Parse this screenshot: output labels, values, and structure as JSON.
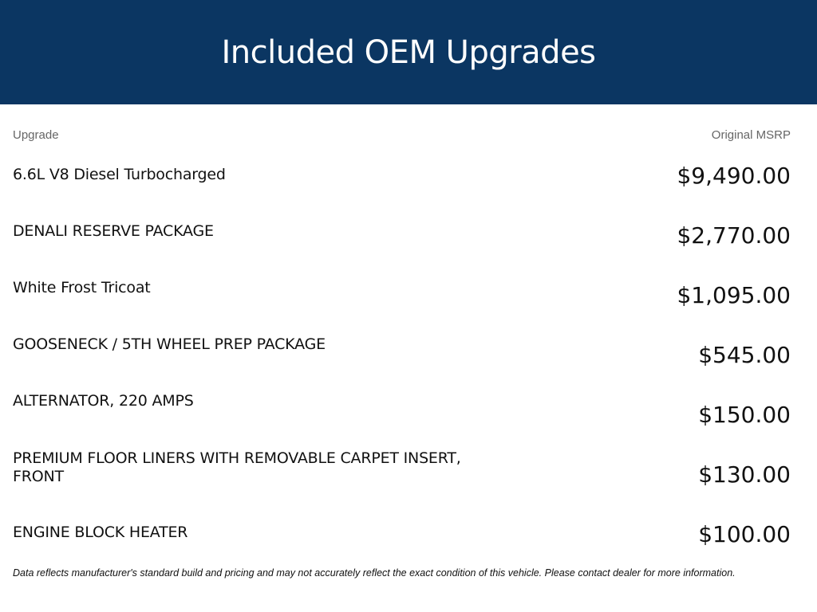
{
  "header": {
    "title": "Included OEM Upgrades",
    "background_color": "#0b3662"
  },
  "table": {
    "columns": {
      "upgrade": "Upgrade",
      "msrp": "Original MSRP"
    },
    "rows": [
      {
        "name": "6.6L V8 Diesel Turbocharged",
        "price": "$9,490.00"
      },
      {
        "name": "DENALI RESERVE PACKAGE",
        "price": "$2,770.00"
      },
      {
        "name": "White Frost Tricoat",
        "price": "$1,095.00"
      },
      {
        "name": "GOOSENECK / 5TH WHEEL PREP PACKAGE",
        "price": "$545.00"
      },
      {
        "name": "ALTERNATOR, 220 AMPS",
        "price": "$150.00"
      },
      {
        "name": "PREMIUM FLOOR LINERS WITH REMOVABLE CARPET INSERT, FRONT",
        "price": "$130.00"
      },
      {
        "name": "ENGINE BLOCK HEATER",
        "price": "$100.00"
      }
    ]
  },
  "disclaimer": "Data reflects manufacturer's standard build and pricing and may not accurately reflect the exact condition of this vehicle. Please contact dealer for more information."
}
